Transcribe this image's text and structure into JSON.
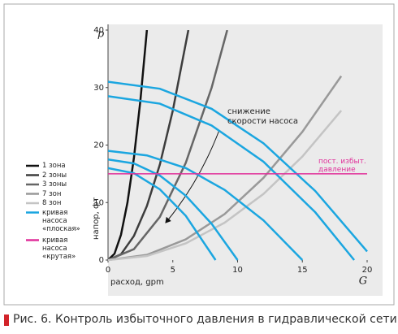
{
  "chart_data": {
    "type": "line",
    "y_axis_symbol": "p",
    "x_axis_symbol": "G",
    "xlabel": "расход, gpm",
    "ylabel": "напор, фт",
    "caption": "Рис. 6. Контроль избыточного давления в гидравлической сети",
    "annotation": "снижение скорости насоса",
    "xlim": [
      0,
      20
    ],
    "ylim": [
      0,
      40
    ],
    "xticks": [
      0,
      5,
      10,
      15,
      20
    ],
    "yticks": [
      0,
      10,
      20,
      30,
      40
    ],
    "series": [
      {
        "name": "1 зона",
        "color": "#111111",
        "x": [
          0,
          0.5,
          1,
          1.5,
          2,
          2.5,
          3
        ],
        "values": [
          0,
          1.1,
          4.4,
          10,
          17.8,
          27.8,
          40
        ]
      },
      {
        "name": "2 зоны",
        "color": "#3d3d3d",
        "x": [
          0,
          1,
          2,
          3,
          4,
          5,
          6.2
        ],
        "values": [
          0,
          1,
          4.2,
          9.4,
          16.6,
          26,
          40
        ]
      },
      {
        "name": "3 зоны",
        "color": "#666666",
        "x": [
          0,
          2,
          4,
          6,
          8,
          9.2
        ],
        "values": [
          0,
          1.9,
          7.5,
          16.9,
          30,
          40
        ]
      },
      {
        "name": "7 зон",
        "color": "#999999",
        "x": [
          0,
          3,
          6,
          9,
          12,
          15,
          18
        ],
        "values": [
          0,
          0.9,
          3.6,
          8,
          14.3,
          22.3,
          32
        ]
      },
      {
        "name": "8 зон",
        "color": "#c4c4c4",
        "x": [
          0,
          3,
          6,
          9,
          12,
          15,
          18
        ],
        "values": [
          0,
          0.7,
          2.9,
          6.5,
          11.5,
          18,
          26
        ]
      }
    ],
    "pump_curves": {
      "name": "кривая насоса «плоская»",
      "color": "#1ba6e0",
      "curves": [
        {
          "x": [
            0,
            4,
            8,
            12,
            16,
            20
          ],
          "values": [
            31,
            29.8,
            26.3,
            20.3,
            12,
            1.5
          ]
        },
        {
          "x": [
            0,
            4,
            8,
            12,
            16,
            19
          ],
          "values": [
            28.5,
            27.2,
            23.4,
            17.1,
            8.3,
            0
          ]
        },
        {
          "x": [
            0,
            3,
            6,
            9,
            12,
            15
          ],
          "values": [
            19,
            18.2,
            16,
            12.2,
            6.9,
            0
          ]
        },
        {
          "x": [
            0,
            2,
            4,
            6,
            8,
            10
          ],
          "values": [
            17.5,
            16.8,
            14.7,
            11.2,
            6.3,
            0
          ]
        },
        {
          "x": [
            0,
            2,
            4,
            6,
            8.3
          ],
          "values": [
            16,
            15.1,
            12.3,
            7.7,
            0
          ]
        }
      ]
    },
    "pressure_line": {
      "name": "кривая насоса «крутая»",
      "label": "пост. избыт. давление",
      "color": "#e0309a",
      "value": 15
    }
  }
}
